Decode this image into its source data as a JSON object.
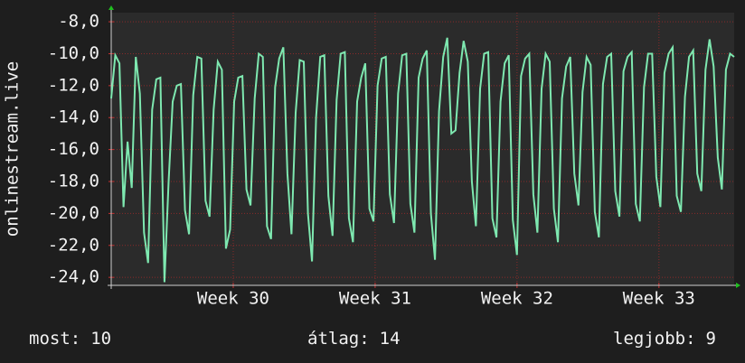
{
  "chart_data": {
    "type": "line",
    "ylabel": "onlinestream.live",
    "series": [
      {
        "color": "#7ee8b0",
        "values": [
          -12.8,
          -10.1,
          -10.6,
          -19.6,
          -15.5,
          -18.4,
          -10.2,
          -12.5,
          -21.2,
          -23.1,
          -13.5,
          -11.6,
          -11.5,
          -24.3,
          -18.0,
          -13.0,
          -12.0,
          -11.9,
          -19.8,
          -21.3,
          -12.6,
          -10.2,
          -10.3,
          -19.2,
          -20.2,
          -13.5,
          -10.5,
          -11.0,
          -22.2,
          -21.0,
          -13.0,
          -11.5,
          -11.4,
          -18.5,
          -19.5,
          -12.8,
          -10.0,
          -10.2,
          -20.8,
          -21.6,
          -12.1,
          -10.3,
          -9.6,
          -17.5,
          -21.3,
          -13.7,
          -10.4,
          -10.5,
          -20.0,
          -23.0,
          -14.0,
          -10.2,
          -10.1,
          -18.9,
          -21.4,
          -12.9,
          -10.0,
          -9.9,
          -20.3,
          -21.8,
          -13.0,
          -11.5,
          -10.6,
          -19.7,
          -20.5,
          -12.0,
          -10.3,
          -10.2,
          -18.8,
          -20.6,
          -12.5,
          -10.1,
          -10.0,
          -19.4,
          -21.2,
          -11.5,
          -10.3,
          -9.8,
          -20.0,
          -22.9,
          -13.6,
          -10.2,
          -9.0,
          -15.0,
          -14.8,
          -11.2,
          -9.2,
          -10.5,
          -18.0,
          -20.8,
          -12.2,
          -10.0,
          -9.9,
          -20.3,
          -21.5,
          -13.0,
          -10.6,
          -10.1,
          -20.4,
          -22.6,
          -11.4,
          -10.3,
          -10.0,
          -18.8,
          -21.2,
          -12.2,
          -10.0,
          -10.5,
          -19.7,
          -21.8,
          -12.8,
          -10.8,
          -10.2,
          -17.5,
          -19.5,
          -12.4,
          -10.2,
          -10.7,
          -19.9,
          -21.5,
          -11.9,
          -10.2,
          -10.0,
          -18.6,
          -20.2,
          -11.1,
          -10.2,
          -9.9,
          -19.4,
          -20.5,
          -12.1,
          -10.0,
          -10.0,
          -17.7,
          -19.6,
          -11.2,
          -10.0,
          -9.6,
          -18.9,
          -19.9,
          -12.7,
          -10.2,
          -9.8,
          -17.5,
          -18.6,
          -11.0,
          -9.1,
          -10.8,
          -16.5,
          -18.5,
          -11.0,
          -10.0,
          -10.2
        ]
      }
    ],
    "xlim": [
      29.14,
      33.53
    ],
    "xticks": [
      {
        "value": 30,
        "label": "Week 30"
      },
      {
        "value": 31,
        "label": "Week 31"
      },
      {
        "value": 32,
        "label": "Week 32"
      },
      {
        "value": 33,
        "label": "Week 33"
      }
    ],
    "ylim": [
      -24.5,
      -7.43
    ],
    "yticks": [
      {
        "value": -8,
        "label": "-8,0"
      },
      {
        "value": -10,
        "label": "-10,0"
      },
      {
        "value": -12,
        "label": "-12,0"
      },
      {
        "value": -14,
        "label": "-14,0"
      },
      {
        "value": -16,
        "label": "-16,0"
      },
      {
        "value": -18,
        "label": "-18,0"
      },
      {
        "value": -20,
        "label": "-20,0"
      },
      {
        "value": -22,
        "label": "-22,0"
      },
      {
        "value": -24,
        "label": "-24,0"
      }
    ],
    "grid": true
  },
  "footer": [
    {
      "label": "most:",
      "value": 10
    },
    {
      "label": "átlag:",
      "value": 14
    },
    {
      "label": "legjobb:",
      "value": 9
    }
  ]
}
